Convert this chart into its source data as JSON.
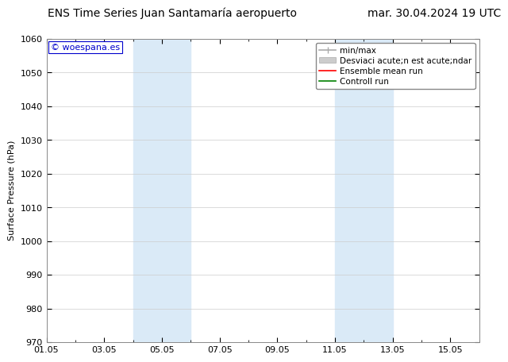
{
  "title": "ENS Time Series Juan Santamaría aeropuerto",
  "date_label": "mar. 30.04.2024 19 UTC",
  "ylabel": "Surface Pressure (hPa)",
  "watermark": "© woespana.es",
  "xlim": [
    1.0,
    16.0
  ],
  "ylim": [
    970,
    1060
  ],
  "yticks": [
    970,
    980,
    990,
    1000,
    1010,
    1020,
    1030,
    1040,
    1050,
    1060
  ],
  "xticks": [
    1.0,
    3.0,
    5.0,
    7.0,
    9.0,
    11.0,
    13.0,
    15.0
  ],
  "xticklabels": [
    "01.05",
    "03.05",
    "05.05",
    "07.05",
    "09.05",
    "11.05",
    "13.05",
    "15.05"
  ],
  "shaded_regions": [
    {
      "xmin": 4.0,
      "xmax": 6.0
    },
    {
      "xmin": 11.0,
      "xmax": 13.0
    }
  ],
  "shaded_color": "#daeaf7",
  "legend_label_minmax": "min/max",
  "legend_label_std": "Desviaci acute;n est acute;ndar",
  "legend_label_ensemble": "Ensemble mean run",
  "legend_label_control": "Controll run",
  "bg_color": "#ffffff",
  "plot_bg_color": "#ffffff",
  "grid_color": "#cccccc",
  "title_fontsize": 10,
  "date_fontsize": 10,
  "axis_fontsize": 8,
  "tick_fontsize": 8,
  "legend_fontsize": 7.5,
  "watermark_fontsize": 8
}
